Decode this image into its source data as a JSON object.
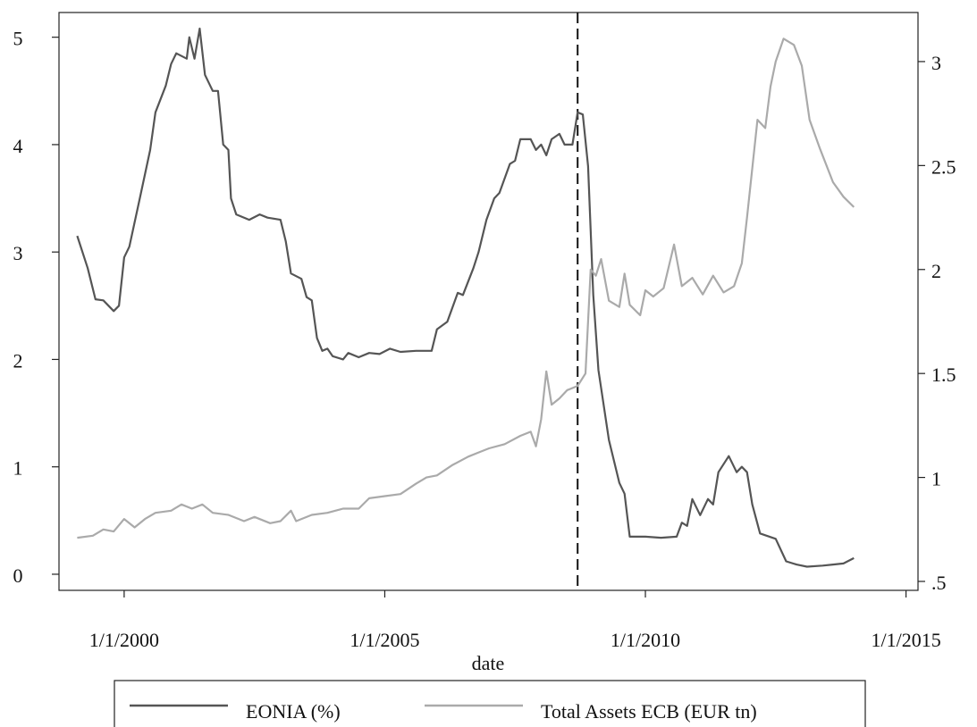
{
  "chart_data": {
    "type": "line",
    "xlabel": "date",
    "xlim": [
      1998.75,
      2015.23
    ],
    "xticks": [
      {
        "value": 2000,
        "label": "1/1/2000"
      },
      {
        "value": 2005,
        "label": "1/1/2005"
      },
      {
        "value": 2010,
        "label": "1/1/2010"
      },
      {
        "value": 2015,
        "label": "1/1/2015"
      }
    ],
    "ylim": [
      -0.15,
      5.23
    ],
    "yticks": [
      0,
      1,
      2,
      3,
      4,
      5
    ],
    "y2lim": [
      0.457,
      3.236
    ],
    "y2ticks": [
      {
        "value": 0.5,
        "label": ".5"
      },
      1,
      1.5,
      2,
      {
        "value": 2.5,
        "label": "2.5"
      },
      3
    ],
    "vline": 2008.7,
    "series": [
      {
        "name": "EONIA (%)",
        "color": "#555555",
        "axis": "y",
        "x": [
          1999.1,
          1999.3,
          1999.45,
          1999.6,
          1999.8,
          1999.9,
          2000.0,
          2000.1,
          2000.3,
          2000.5,
          2000.6,
          2000.8,
          2000.9,
          2001.0,
          2001.2,
          2001.25,
          2001.35,
          2001.45,
          2001.55,
          2001.7,
          2001.8,
          2001.9,
          2002.0,
          2002.05,
          2002.15,
          2002.4,
          2002.6,
          2002.75,
          2003.0,
          2003.1,
          2003.2,
          2003.4,
          2003.5,
          2003.6,
          2003.7,
          2003.8,
          2003.9,
          2004.0,
          2004.2,
          2004.3,
          2004.5,
          2004.7,
          2004.9,
          2005.1,
          2005.3,
          2005.6,
          2005.9,
          2006.0,
          2006.2,
          2006.4,
          2006.5,
          2006.7,
          2006.8,
          2006.95,
          2007.1,
          2007.2,
          2007.4,
          2007.5,
          2007.6,
          2007.8,
          2007.9,
          2008.0,
          2008.1,
          2008.2,
          2008.35,
          2008.45,
          2008.6,
          2008.7,
          2008.8,
          2008.9,
          2009.0,
          2009.1,
          2009.3,
          2009.5,
          2009.6,
          2009.7,
          2010.0,
          2010.3,
          2010.6,
          2010.7,
          2010.8,
          2010.9,
          2011.05,
          2011.2,
          2011.3,
          2011.4,
          2011.6,
          2011.75,
          2011.85,
          2011.95,
          2012.05,
          2012.2,
          2012.5,
          2012.7,
          2012.9,
          2013.1,
          2013.4,
          2013.6,
          2013.8,
          2014.0
        ],
        "values": [
          3.15,
          2.85,
          2.56,
          2.55,
          2.45,
          2.5,
          2.95,
          3.05,
          3.5,
          3.95,
          4.3,
          4.55,
          4.75,
          4.85,
          4.8,
          5.0,
          4.8,
          5.08,
          4.65,
          4.5,
          4.5,
          4.0,
          3.95,
          3.5,
          3.35,
          3.3,
          3.35,
          3.32,
          3.3,
          3.1,
          2.8,
          2.75,
          2.58,
          2.55,
          2.2,
          2.08,
          2.1,
          2.03,
          2.0,
          2.06,
          2.02,
          2.06,
          2.05,
          2.1,
          2.07,
          2.08,
          2.08,
          2.28,
          2.35,
          2.62,
          2.6,
          2.85,
          3.0,
          3.3,
          3.5,
          3.55,
          3.82,
          3.85,
          4.05,
          4.05,
          3.95,
          4.0,
          3.9,
          4.05,
          4.1,
          4.0,
          4.0,
          4.3,
          4.28,
          3.8,
          2.6,
          1.9,
          1.25,
          0.85,
          0.75,
          0.35,
          0.35,
          0.34,
          0.35,
          0.48,
          0.45,
          0.7,
          0.55,
          0.7,
          0.65,
          0.95,
          1.1,
          0.95,
          1.0,
          0.95,
          0.65,
          0.38,
          0.33,
          0.12,
          0.09,
          0.07,
          0.08,
          0.09,
          0.1,
          0.15
        ]
      },
      {
        "name": "Total Assets ECB (EUR tn)",
        "color": "#aaaaaa",
        "axis": "y2",
        "x": [
          1999.1,
          1999.4,
          1999.6,
          1999.8,
          2000.0,
          2000.2,
          2000.4,
          2000.6,
          2000.9,
          2001.1,
          2001.3,
          2001.5,
          2001.7,
          2002.0,
          2002.3,
          2002.5,
          2002.8,
          2003.0,
          2003.2,
          2003.3,
          2003.6,
          2003.9,
          2004.2,
          2004.5,
          2004.7,
          2005.0,
          2005.3,
          2005.6,
          2005.8,
          2006.0,
          2006.3,
          2006.6,
          2006.8,
          2007.0,
          2007.3,
          2007.6,
          2007.8,
          2007.9,
          2008.0,
          2008.1,
          2008.2,
          2008.35,
          2008.5,
          2008.7,
          2008.85,
          2008.95,
          2009.05,
          2009.15,
          2009.3,
          2009.5,
          2009.6,
          2009.7,
          2009.9,
          2010.0,
          2010.15,
          2010.35,
          2010.55,
          2010.7,
          2010.9,
          2011.1,
          2011.3,
          2011.5,
          2011.7,
          2011.85,
          2011.95,
          2012.15,
          2012.3,
          2012.4,
          2012.5,
          2012.65,
          2012.85,
          2013.0,
          2013.15,
          2013.35,
          2013.6,
          2013.8,
          2014.0
        ],
        "values": [
          0.71,
          0.72,
          0.75,
          0.74,
          0.8,
          0.76,
          0.8,
          0.83,
          0.84,
          0.87,
          0.85,
          0.87,
          0.83,
          0.82,
          0.79,
          0.81,
          0.78,
          0.79,
          0.84,
          0.79,
          0.82,
          0.83,
          0.85,
          0.85,
          0.9,
          0.91,
          0.92,
          0.97,
          1.0,
          1.01,
          1.06,
          1.1,
          1.12,
          1.14,
          1.16,
          1.2,
          1.22,
          1.15,
          1.28,
          1.51,
          1.35,
          1.38,
          1.42,
          1.44,
          1.5,
          2.0,
          1.97,
          2.05,
          1.85,
          1.82,
          1.98,
          1.83,
          1.78,
          1.9,
          1.87,
          1.91,
          2.12,
          1.92,
          1.96,
          1.88,
          1.97,
          1.89,
          1.92,
          2.03,
          2.25,
          2.72,
          2.68,
          2.88,
          3.0,
          3.11,
          3.08,
          2.98,
          2.72,
          2.58,
          2.42,
          2.35,
          2.3
        ]
      }
    ]
  }
}
